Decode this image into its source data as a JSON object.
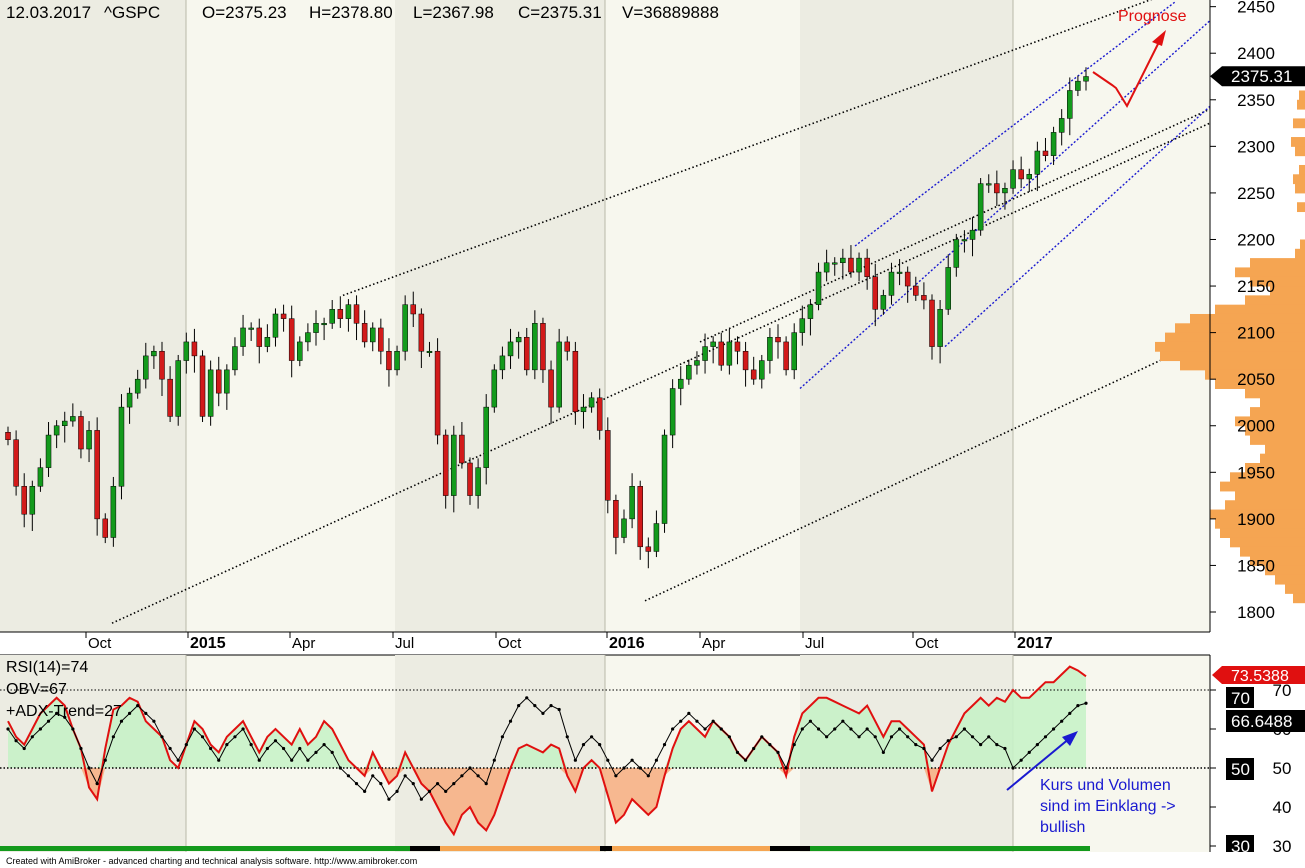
{
  "header": {
    "date": "12.03.2017",
    "symbol": "^GSPC",
    "open": "O=2375.23",
    "high": "H=2378.80",
    "low": "L=2367.98",
    "close": "C=2375.31",
    "volume": "V=36889888"
  },
  "footer": "Created with AmiBroker - advanced charting and technical analysis software. http://www.amibroker.com",
  "colors": {
    "up": "#139a1c",
    "down": "#d21a1a",
    "channel": "#1a1ad0",
    "volume_profile": "#f5a552",
    "rsi_fill_up": "#c8f2c8",
    "rsi_fill_down": "#f7b48a",
    "band_shade": "#ecece2"
  },
  "chart_data": [
    {
      "type": "candlestick",
      "ticker": "^GSPC",
      "y_ticks": [
        1800,
        1850,
        1900,
        1950,
        2000,
        2050,
        2100,
        2150,
        2200,
        2250,
        2300,
        2350,
        2400,
        2450
      ],
      "ylim": [
        1780,
        2455
      ],
      "x_tick_labels": [
        {
          "label": "Oct",
          "bold": false
        },
        {
          "label": "2015",
          "bold": true
        },
        {
          "label": "Apr",
          "bold": false
        },
        {
          "label": "Jul",
          "bold": false
        },
        {
          "label": "Oct",
          "bold": false
        },
        {
          "label": "2016",
          "bold": true
        },
        {
          "label": "Apr",
          "bold": false
        },
        {
          "label": "Jul",
          "bold": false
        },
        {
          "label": "Oct",
          "bold": false
        },
        {
          "label": "2017",
          "bold": true
        }
      ],
      "last_price_label": "2375.31",
      "last_price": 2375.31,
      "annotation": "Prognose",
      "closes": [
        1985,
        1935,
        1905,
        1935,
        1955,
        1990,
        2000,
        2005,
        2010,
        1975,
        1995,
        1900,
        1880,
        1935,
        2020,
        2035,
        2050,
        2075,
        2080,
        2050,
        2010,
        2070,
        2090,
        2075,
        2010,
        2060,
        2035,
        2060,
        2085,
        2105,
        2105,
        2085,
        2095,
        2120,
        2115,
        2070,
        2090,
        2100,
        2110,
        2110,
        2125,
        2115,
        2130,
        2110,
        2090,
        2105,
        2080,
        2060,
        2080,
        2130,
        2120,
        2080,
        2080,
        1990,
        1925,
        1990,
        1960,
        1925,
        1955,
        2020,
        2060,
        2075,
        2090,
        2095,
        2060,
        2110,
        2060,
        2020,
        2090,
        2080,
        2015,
        2020,
        2030,
        1995,
        1920,
        1880,
        1900,
        1935,
        1870,
        1865,
        1895,
        1990,
        2040,
        2050,
        2065,
        2070,
        2085,
        2090,
        2065,
        2090,
        2080,
        2060,
        2050,
        2070,
        2095,
        2090,
        2060,
        2100,
        2115,
        2130,
        2165,
        2175,
        2175,
        2180,
        2165,
        2180,
        2160,
        2125,
        2140,
        2165,
        2165,
        2150,
        2140,
        2135,
        2085,
        2125,
        2170,
        2200,
        2200,
        2210,
        2260,
        2260,
        2250,
        2255,
        2275,
        2265,
        2270,
        2295,
        2290,
        2315,
        2330,
        2360,
        2370,
        2375
      ],
      "trend_lines": [
        {
          "name": "upper-trend-line",
          "points": [
            [
              "2015-05",
              "2140"
            ],
            [
              "2017-03+",
              "2455"
            ]
          ]
        },
        {
          "name": "mid-trend-line",
          "points": [
            [
              "2014-09",
              "1780"
            ],
            [
              "2017-03+",
              "2320"
            ]
          ]
        },
        {
          "name": "lower-trend-line",
          "points": [
            [
              "2016-02",
              "1810"
            ],
            [
              "2017-03+",
              "2095"
            ]
          ]
        }
      ]
    },
    {
      "type": "line",
      "name": "indicators",
      "y_ticks": [
        30,
        40,
        50,
        60,
        70
      ],
      "ylim": [
        27,
        82
      ],
      "legend": [
        "RSI(14)=74",
        "OBV=67",
        "+ADX-Trend=27"
      ],
      "rsi_label": "73.5388",
      "rsi_last": 73.5388,
      "obv_label": "66.6488",
      "obv_last": 66.6488,
      "level_70_label": "70",
      "level_50_label": "50",
      "level_30_label": "30",
      "annotation": [
        "Kurs und Volumen",
        "sind im Einklang ->",
        "bullish"
      ],
      "rsi": [
        62,
        58,
        56,
        60,
        64,
        66,
        68,
        66,
        60,
        55,
        45,
        42,
        55,
        65,
        66,
        68,
        67,
        62,
        60,
        58,
        52,
        50,
        56,
        62,
        60,
        56,
        54,
        58,
        60,
        62,
        58,
        54,
        58,
        60,
        58,
        56,
        60,
        56,
        58,
        62,
        60,
        56,
        52,
        50,
        48,
        54,
        50,
        46,
        48,
        54,
        50,
        46,
        44,
        40,
        36,
        33,
        38,
        40,
        36,
        34,
        38,
        44,
        50,
        55,
        56,
        55,
        54,
        56,
        55,
        48,
        44,
        50,
        52,
        50,
        43,
        36,
        38,
        42,
        40,
        38,
        40,
        48,
        55,
        60,
        62,
        60,
        58,
        62,
        60,
        58,
        54,
        52,
        55,
        58,
        56,
        54,
        48,
        58,
        64,
        66,
        68,
        68,
        67,
        66,
        65,
        64,
        66,
        62,
        58,
        62,
        62,
        60,
        58,
        56,
        44,
        50,
        56,
        60,
        64,
        66,
        68,
        66,
        68,
        67,
        70,
        68,
        68,
        70,
        72,
        72,
        74,
        76,
        75,
        73.5
      ],
      "obv": [
        60,
        57,
        55,
        58,
        60,
        62,
        64,
        63,
        60,
        55,
        50,
        46,
        52,
        58,
        62,
        64,
        66,
        64,
        62,
        58,
        55,
        52,
        56,
        60,
        58,
        55,
        52,
        56,
        58,
        60,
        56,
        52,
        55,
        57,
        55,
        52,
        55,
        52,
        54,
        56,
        54,
        50,
        48,
        46,
        44,
        48,
        46,
        42,
        44,
        48,
        46,
        42,
        44,
        46,
        44,
        46,
        48,
        50,
        48,
        46,
        52,
        58,
        62,
        66,
        68,
        66,
        64,
        66,
        65,
        58,
        52,
        56,
        58,
        56,
        52,
        48,
        50,
        52,
        50,
        48,
        52,
        56,
        60,
        62,
        64,
        62,
        60,
        62,
        60,
        58,
        54,
        52,
        55,
        58,
        56,
        54,
        50,
        56,
        60,
        62,
        60,
        58,
        60,
        62,
        60,
        58,
        60,
        58,
        54,
        58,
        60,
        58,
        56,
        55,
        52,
        55,
        57,
        58,
        60,
        58,
        56,
        58,
        56,
        55,
        50,
        52,
        54,
        56,
        58,
        60,
        62,
        64,
        66,
        66.6
      ]
    }
  ]
}
